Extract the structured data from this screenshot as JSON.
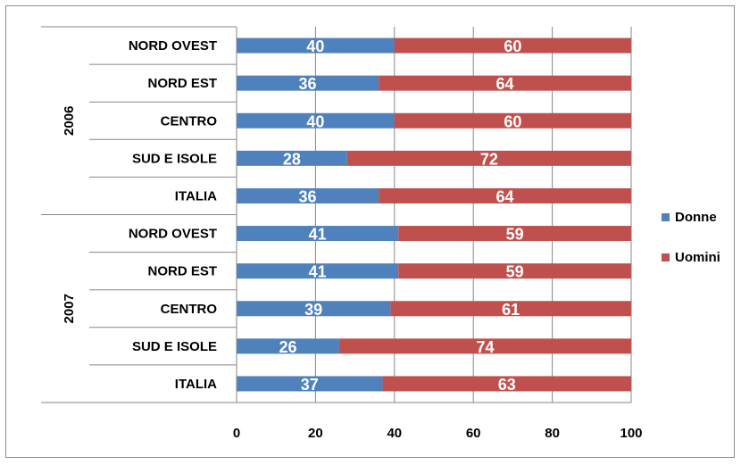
{
  "chart_data": {
    "type": "bar",
    "orientation": "horizontal",
    "stacked": true,
    "groups": [
      {
        "label": "2006",
        "categories": [
          "NORD OVEST",
          "NORD EST",
          "CENTRO",
          "SUD E ISOLE",
          "ITALIA"
        ]
      },
      {
        "label": "2007",
        "categories": [
          "NORD OVEST",
          "NORD EST",
          "CENTRO",
          "SUD E ISOLE",
          "ITALIA"
        ]
      }
    ],
    "series": [
      {
        "name": "Donne",
        "color": "#4f81bd",
        "values": [
          40,
          36,
          40,
          28,
          36,
          41,
          41,
          39,
          26,
          37
        ]
      },
      {
        "name": "Uomini",
        "color": "#c0504d",
        "values": [
          60,
          64,
          60,
          72,
          64,
          59,
          59,
          61,
          74,
          63
        ]
      }
    ],
    "xlim": [
      0,
      100
    ],
    "xticks": [
      0,
      20,
      40,
      60,
      80,
      100
    ],
    "grid": true,
    "legend_position": "right"
  }
}
